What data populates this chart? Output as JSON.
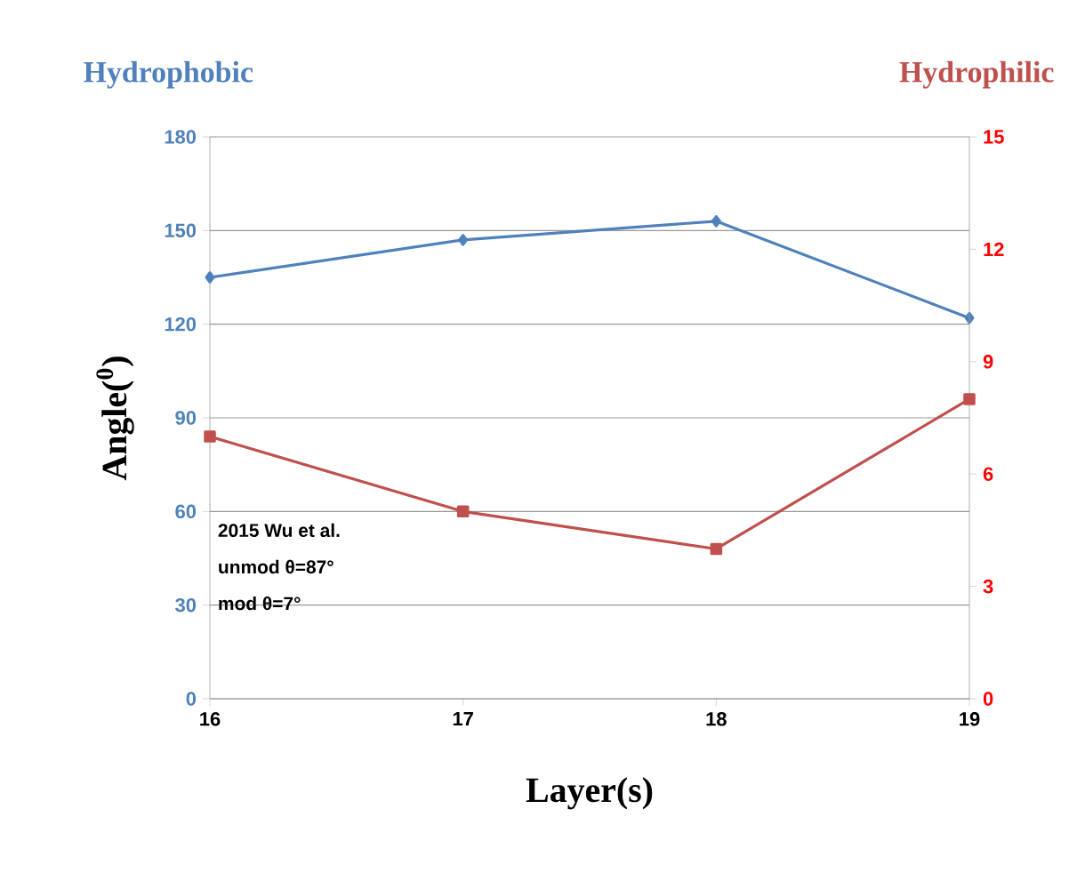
{
  "chart_data": {
    "type": "line",
    "xlabel": "Layer(s)",
    "ylabel": "Angle($^{0}$)",
    "x": [
      16,
      17,
      18,
      19
    ],
    "xlim": [
      16,
      19
    ],
    "xticks": [
      16,
      17,
      18,
      19
    ],
    "ylim": [
      0,
      180
    ],
    "yticks": [
      0,
      30,
      60,
      90,
      120,
      150,
      180
    ],
    "y2lim": [
      0,
      15
    ],
    "y2ticks": [
      0,
      3,
      6,
      9,
      12,
      15
    ],
    "grid": "y",
    "series": [
      {
        "name": "Hydrophobic",
        "color": "#4f81bd",
        "marker": "diamond",
        "values": [
          135,
          147,
          153,
          122
        ]
      },
      {
        "name": "Hydrophilic",
        "color": "#c0504d",
        "marker": "square",
        "axis": "y2",
        "values": [
          7,
          5,
          4,
          8
        ]
      }
    ],
    "annotations": [
      "2015 Wu et al.",
      "unmod θ=87°",
      "mod θ=7°"
    ]
  }
}
